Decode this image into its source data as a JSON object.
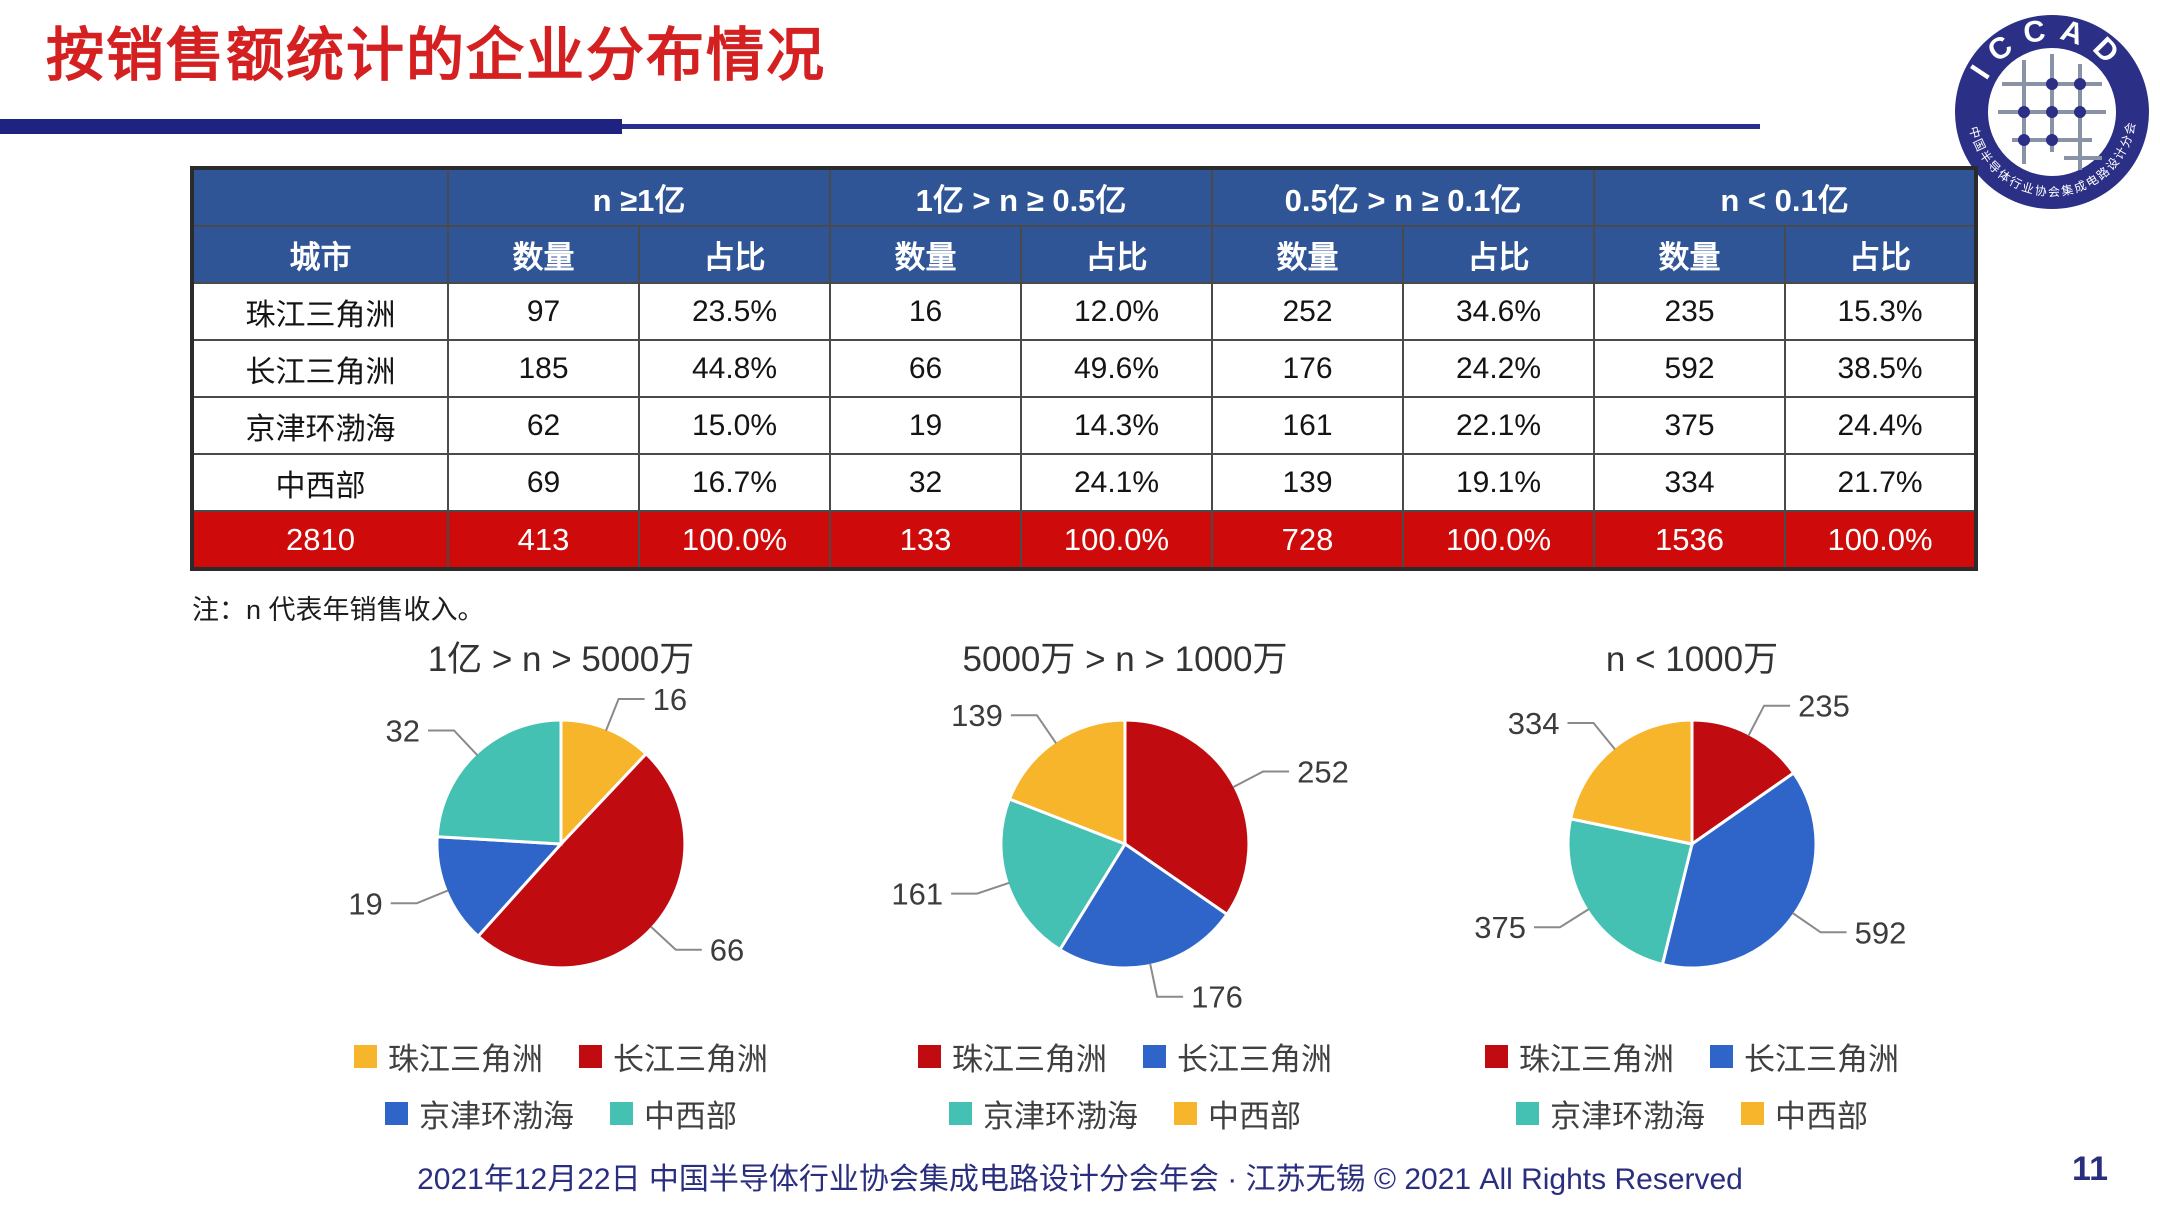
{
  "slide": {
    "title": "按销售额统计的企业分布情况",
    "note": "注：n 代表年销售收入。",
    "footer": "2021年12月22日 中国半导体行业协会集成电路设计分会年会 · 江苏无锡 © 2021 All Rights Reserved",
    "page_number": "11"
  },
  "logo": {
    "arc_top": "ICCAD",
    "arc_bottom": "中国半导体行业协会集成电路设计分会"
  },
  "colors": {
    "title_red": "#D42020",
    "bar_navy": "#1E2382",
    "header_blue": "#2F5597",
    "total_row_red": "#CE0A0A",
    "footer_navy": "#2A2E7F",
    "pie_red": "#C00C11",
    "pie_blue": "#2F65C8",
    "pie_teal": "#45C1B3",
    "pie_yellow": "#F7B52B"
  },
  "table": {
    "group_headers": [
      "n ≥1亿",
      "1亿 > n ≥ 0.5亿",
      "0.5亿 > n ≥ 0.1亿",
      "n < 0.1亿"
    ],
    "sub_headers": [
      "城市",
      "数量",
      "占比",
      "数量",
      "占比",
      "数量",
      "占比",
      "数量",
      "占比"
    ],
    "rows": [
      [
        "珠江三角洲",
        "97",
        "23.5%",
        "16",
        "12.0%",
        "252",
        "34.6%",
        "235",
        "15.3%"
      ],
      [
        "长江三角洲",
        "185",
        "44.8%",
        "66",
        "49.6%",
        "176",
        "24.2%",
        "592",
        "38.5%"
      ],
      [
        "京津环渤海",
        "62",
        "15.0%",
        "19",
        "14.3%",
        "161",
        "22.1%",
        "375",
        "24.4%"
      ],
      [
        "中西部",
        "69",
        "16.7%",
        "32",
        "24.1%",
        "139",
        "19.1%",
        "334",
        "21.7%"
      ]
    ],
    "total_row": [
      "2810",
      "413",
      "100.0%",
      "133",
      "100.0%",
      "728",
      "100.0%",
      "1536",
      "100.0%"
    ]
  },
  "chart_data": [
    {
      "type": "pie",
      "title": "1亿 > n > 5000万",
      "slices": [
        {
          "name": "珠江三角洲",
          "value": 16,
          "color": "#F7B52B"
        },
        {
          "name": "长江三角洲",
          "value": 66,
          "color": "#C00C11"
        },
        {
          "name": "京津环渤海",
          "value": 19,
          "color": "#2F65C8"
        },
        {
          "name": "中西部",
          "value": 32,
          "color": "#45C1B3"
        }
      ],
      "legend_position": "bottom"
    },
    {
      "type": "pie",
      "title": "5000万 > n > 1000万",
      "slices": [
        {
          "name": "珠江三角洲",
          "value": 252,
          "color": "#C00C11"
        },
        {
          "name": "长江三角洲",
          "value": 176,
          "color": "#2F65C8"
        },
        {
          "name": "京津环渤海",
          "value": 161,
          "color": "#45C1B3"
        },
        {
          "name": "中西部",
          "value": 139,
          "color": "#F7B52B"
        }
      ],
      "legend_position": "bottom"
    },
    {
      "type": "pie",
      "title": "n < 1000万",
      "slices": [
        {
          "name": "珠江三角洲",
          "value": 235,
          "color": "#C00C11"
        },
        {
          "name": "长江三角洲",
          "value": 592,
          "color": "#2F65C8"
        },
        {
          "name": "京津环渤海",
          "value": 375,
          "color": "#45C1B3"
        },
        {
          "name": "中西部",
          "value": 334,
          "color": "#F7B52B"
        }
      ],
      "legend_position": "bottom"
    }
  ]
}
